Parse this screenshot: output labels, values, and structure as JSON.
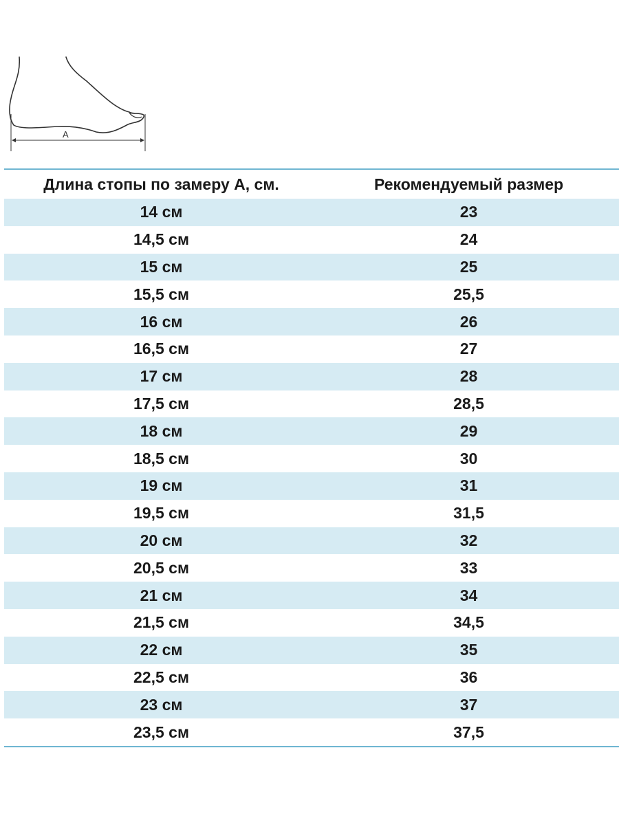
{
  "diagram": {
    "measure_label": "A",
    "icon": "foot-length-icon"
  },
  "table": {
    "headers": [
      "Длина стопы по замеру А, см.",
      "Рекомендуемый размер"
    ],
    "rows": [
      [
        "14 см",
        "23"
      ],
      [
        "14,5 см",
        "24"
      ],
      [
        "15 см",
        "25"
      ],
      [
        "15,5 см",
        "25,5"
      ],
      [
        "16 см",
        "26"
      ],
      [
        "16,5 см",
        "27"
      ],
      [
        "17 см",
        "28"
      ],
      [
        "17,5 см",
        "28,5"
      ],
      [
        "18 см",
        "29"
      ],
      [
        "18,5 см",
        "30"
      ],
      [
        "19 см",
        "31"
      ],
      [
        "19,5 см",
        "31,5"
      ],
      [
        "20 см",
        "32"
      ],
      [
        "20,5 см",
        "33"
      ],
      [
        "21 см",
        "34"
      ],
      [
        "21,5 см",
        "34,5"
      ],
      [
        "22 см",
        "35"
      ],
      [
        "22,5 см",
        "36"
      ],
      [
        "23 см",
        "37"
      ],
      [
        "23,5 см",
        "37,5"
      ]
    ]
  },
  "colors": {
    "stripe": "#d6ebf3",
    "rule": "#6fb6d2",
    "text": "#1a1a1a"
  }
}
